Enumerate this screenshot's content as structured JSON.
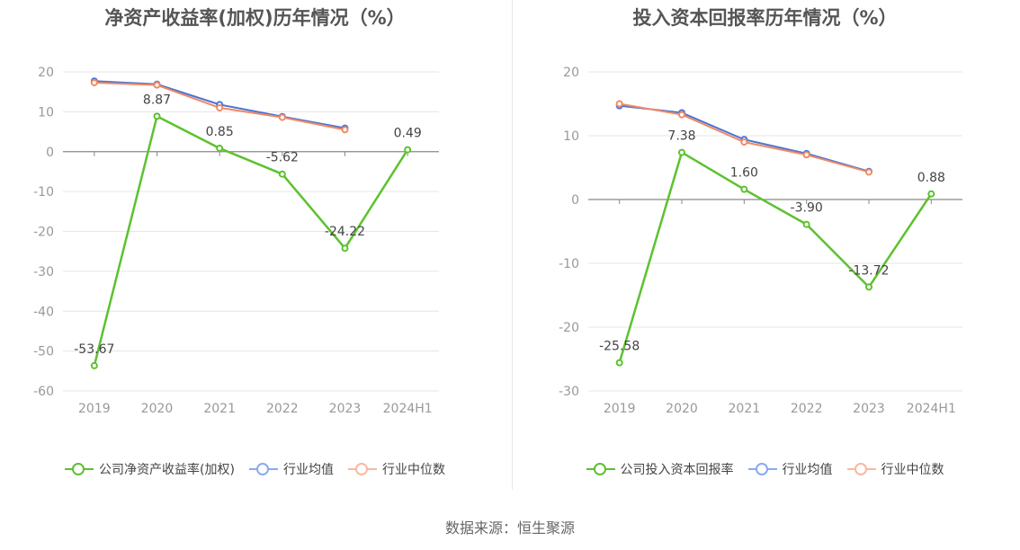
{
  "source": "数据来源：恒生聚源",
  "colors": {
    "company": "#5cc22e",
    "avg": "#4a74d6",
    "median": "#ef8a64",
    "avg_legend": "#8aaaf0",
    "median_legend": "#f7b9a0"
  },
  "chart_data": [
    {
      "type": "line",
      "title": "净资产收益率(加权)历年情况（%）",
      "categories": [
        "2019",
        "2020",
        "2021",
        "2022",
        "2023",
        "2024H1"
      ],
      "ylim": [
        -60,
        20
      ],
      "yticks": [
        "20",
        "10",
        "0",
        "-10",
        "-20",
        "-30",
        "-40",
        "-50",
        "-60"
      ],
      "grid": true,
      "legend_position": "bottom",
      "series": [
        {
          "name": "公司净资产收益率(加权)",
          "values": [
            -53.67,
            8.87,
            0.85,
            -5.62,
            -24.22,
            0.49
          ],
          "labels": [
            "-53.67",
            "8.87",
            "0.85",
            "-5.62",
            "-24.22",
            "0.49"
          ]
        },
        {
          "name": "行业均值",
          "values": [
            17.7,
            16.9,
            11.8,
            8.8,
            5.9,
            null
          ]
        },
        {
          "name": "行业中位数",
          "values": [
            17.3,
            16.7,
            11.0,
            8.6,
            5.5,
            null
          ]
        }
      ]
    },
    {
      "type": "line",
      "title": "投入资本回报率历年情况（%）",
      "categories": [
        "2019",
        "2020",
        "2021",
        "2022",
        "2023",
        "2024H1"
      ],
      "ylim": [
        -30,
        20
      ],
      "yticks": [
        "20",
        "10",
        "0",
        "-10",
        "-20",
        "-30"
      ],
      "grid": true,
      "legend_position": "bottom",
      "series": [
        {
          "name": "公司投入资本回报率",
          "values": [
            -25.58,
            7.38,
            1.6,
            -3.9,
            -13.72,
            0.88
          ],
          "labels": [
            "-25.58",
            "7.38",
            "1.60",
            "-3.90",
            "-13.72",
            "0.88"
          ]
        },
        {
          "name": "行业均值",
          "values": [
            14.7,
            13.6,
            9.4,
            7.2,
            4.4,
            null
          ]
        },
        {
          "name": "行业中位数",
          "values": [
            15.0,
            13.3,
            9.0,
            7.0,
            4.3,
            null
          ]
        }
      ]
    }
  ]
}
